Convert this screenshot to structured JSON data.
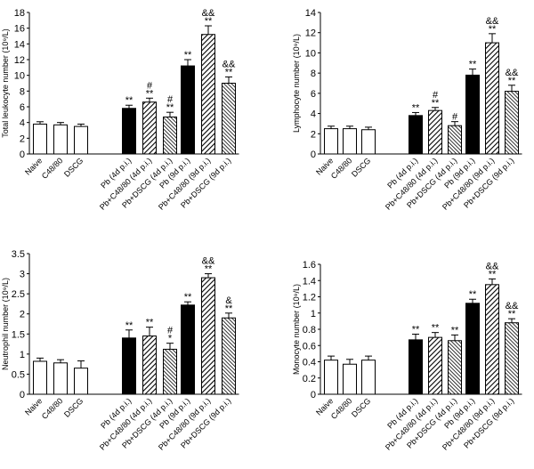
{
  "chart_data": [
    {
      "type": "bar",
      "panel": "top-left",
      "ylabel": "Total leukocyte number (10⁹/L)",
      "ylim": [
        0,
        18
      ],
      "yticks": [
        0,
        2,
        4,
        6,
        8,
        10,
        12,
        14,
        16,
        18
      ],
      "categories": [
        "Naive",
        "C48/80",
        "DSCG",
        "Pb (4d p.i.)",
        "Pb+C48/80 (4d p.i.)",
        "Pb+DSCG (4d p.i.)",
        "Pb (9d p.i.)",
        "Pb+C48/80 (9d p.i.)",
        "Pb+DSCG (9d p.i.)"
      ],
      "values": [
        3.8,
        3.7,
        3.5,
        5.8,
        6.6,
        4.7,
        11.2,
        15.2,
        9.0
      ],
      "errors": [
        0.3,
        0.3,
        0.3,
        0.4,
        0.5,
        0.6,
        0.8,
        1.1,
        0.8
      ],
      "significance": [
        [
          "",
          ""
        ],
        [
          "",
          ""
        ],
        [
          "",
          ""
        ],
        [
          "**",
          ""
        ],
        [
          "**",
          "#"
        ],
        [
          "**",
          "#"
        ],
        [
          "**",
          ""
        ],
        [
          "**",
          "&&"
        ],
        [
          "**",
          "&&"
        ]
      ]
    },
    {
      "type": "bar",
      "panel": "top-right",
      "ylabel": "Lymphocyte number (10⁹/L)",
      "ylim": [
        0,
        14
      ],
      "yticks": [
        0,
        2,
        4,
        6,
        8,
        10,
        12,
        14
      ],
      "categories": [
        "Naive",
        "C48/80",
        "DSCG",
        "Pb (4d p.i.)",
        "Pb+C48/80 (4d p.i.)",
        "Pb+DSCG (4d p.i.)",
        "Pb (9d p.i.)",
        "Pb+C48/80 (9d p.i.)",
        "Pb+DSCG (9d p.i.)"
      ],
      "values": [
        2.5,
        2.5,
        2.4,
        3.8,
        4.3,
        2.8,
        7.8,
        11.0,
        6.2
      ],
      "errors": [
        0.25,
        0.25,
        0.25,
        0.3,
        0.3,
        0.4,
        0.6,
        0.9,
        0.6
      ],
      "significance": [
        [
          "",
          ""
        ],
        [
          "",
          ""
        ],
        [
          "",
          ""
        ],
        [
          "**",
          ""
        ],
        [
          "**",
          "#"
        ],
        [
          "#",
          ""
        ],
        [
          "**",
          ""
        ],
        [
          "**",
          "&&"
        ],
        [
          "**",
          "&&"
        ]
      ]
    },
    {
      "type": "bar",
      "panel": "bottom-left",
      "ylabel": "Neutrophil number (10⁹/L)",
      "ylim": [
        0,
        3.5
      ],
      "yticks": [
        0,
        0.5,
        1,
        1.5,
        2,
        2.5,
        3,
        3.5
      ],
      "categories": [
        "Naive",
        "C48/80",
        "DSCG",
        "Pb (4d p.i.)",
        "Pb+C48/80 (4d p.i.)",
        "Pb+DSCG (4d p.i.)",
        "Pb (9d p.i.)",
        "Pb+C48/80 (9d p.i.)",
        "Pb+DSCG (9d p.i.)"
      ],
      "values": [
        0.82,
        0.78,
        0.65,
        1.4,
        1.45,
        1.12,
        2.22,
        2.9,
        1.9
      ],
      "errors": [
        0.08,
        0.08,
        0.18,
        0.2,
        0.22,
        0.15,
        0.08,
        0.1,
        0.12
      ],
      "significance": [
        [
          "",
          ""
        ],
        [
          "",
          ""
        ],
        [
          "",
          ""
        ],
        [
          "**",
          ""
        ],
        [
          "**",
          ""
        ],
        [
          "*",
          "#"
        ],
        [
          "**",
          ""
        ],
        [
          "**",
          "&&"
        ],
        [
          "**",
          "&"
        ]
      ]
    },
    {
      "type": "bar",
      "panel": "bottom-right",
      "ylabel": "Monocyte number (10⁹/L)",
      "ylim": [
        0,
        1.6
      ],
      "yticks": [
        0,
        0.2,
        0.4,
        0.6,
        0.8,
        1.0,
        1.2,
        1.4,
        1.6
      ],
      "ytick_labels": [
        "0",
        "0.2",
        "0.4",
        "0.6",
        "0.8",
        "1",
        "1.2",
        "1.4",
        "1.6"
      ],
      "categories": [
        "Naive",
        "C48/80",
        "DSCG",
        "Pb (4d p.i.)",
        "Pb+C48/80 (4d p.i.)",
        "Pb+DSCG (4d p.i.)",
        "Pb (9d p.i.)",
        "Pb+C48/80 (9d p.i.)",
        "Pb+DSCG (9d p.i.)"
      ],
      "values": [
        0.42,
        0.37,
        0.42,
        0.67,
        0.7,
        0.66,
        1.12,
        1.35,
        0.88
      ],
      "errors": [
        0.05,
        0.06,
        0.05,
        0.07,
        0.06,
        0.07,
        0.05,
        0.07,
        0.05
      ],
      "significance": [
        [
          "",
          ""
        ],
        [
          "",
          ""
        ],
        [
          "",
          ""
        ],
        [
          "**",
          ""
        ],
        [
          "**",
          ""
        ],
        [
          "**",
          ""
        ],
        [
          "**",
          ""
        ],
        [
          "**",
          "&&"
        ],
        [
          "**",
          "&&"
        ]
      ]
    }
  ],
  "colors": {
    "control_fill": "#ffffff",
    "pb_fill": "#000000",
    "hatch_dark": "#000000",
    "hatch_light": "#ffffff",
    "axis": "#000000"
  }
}
